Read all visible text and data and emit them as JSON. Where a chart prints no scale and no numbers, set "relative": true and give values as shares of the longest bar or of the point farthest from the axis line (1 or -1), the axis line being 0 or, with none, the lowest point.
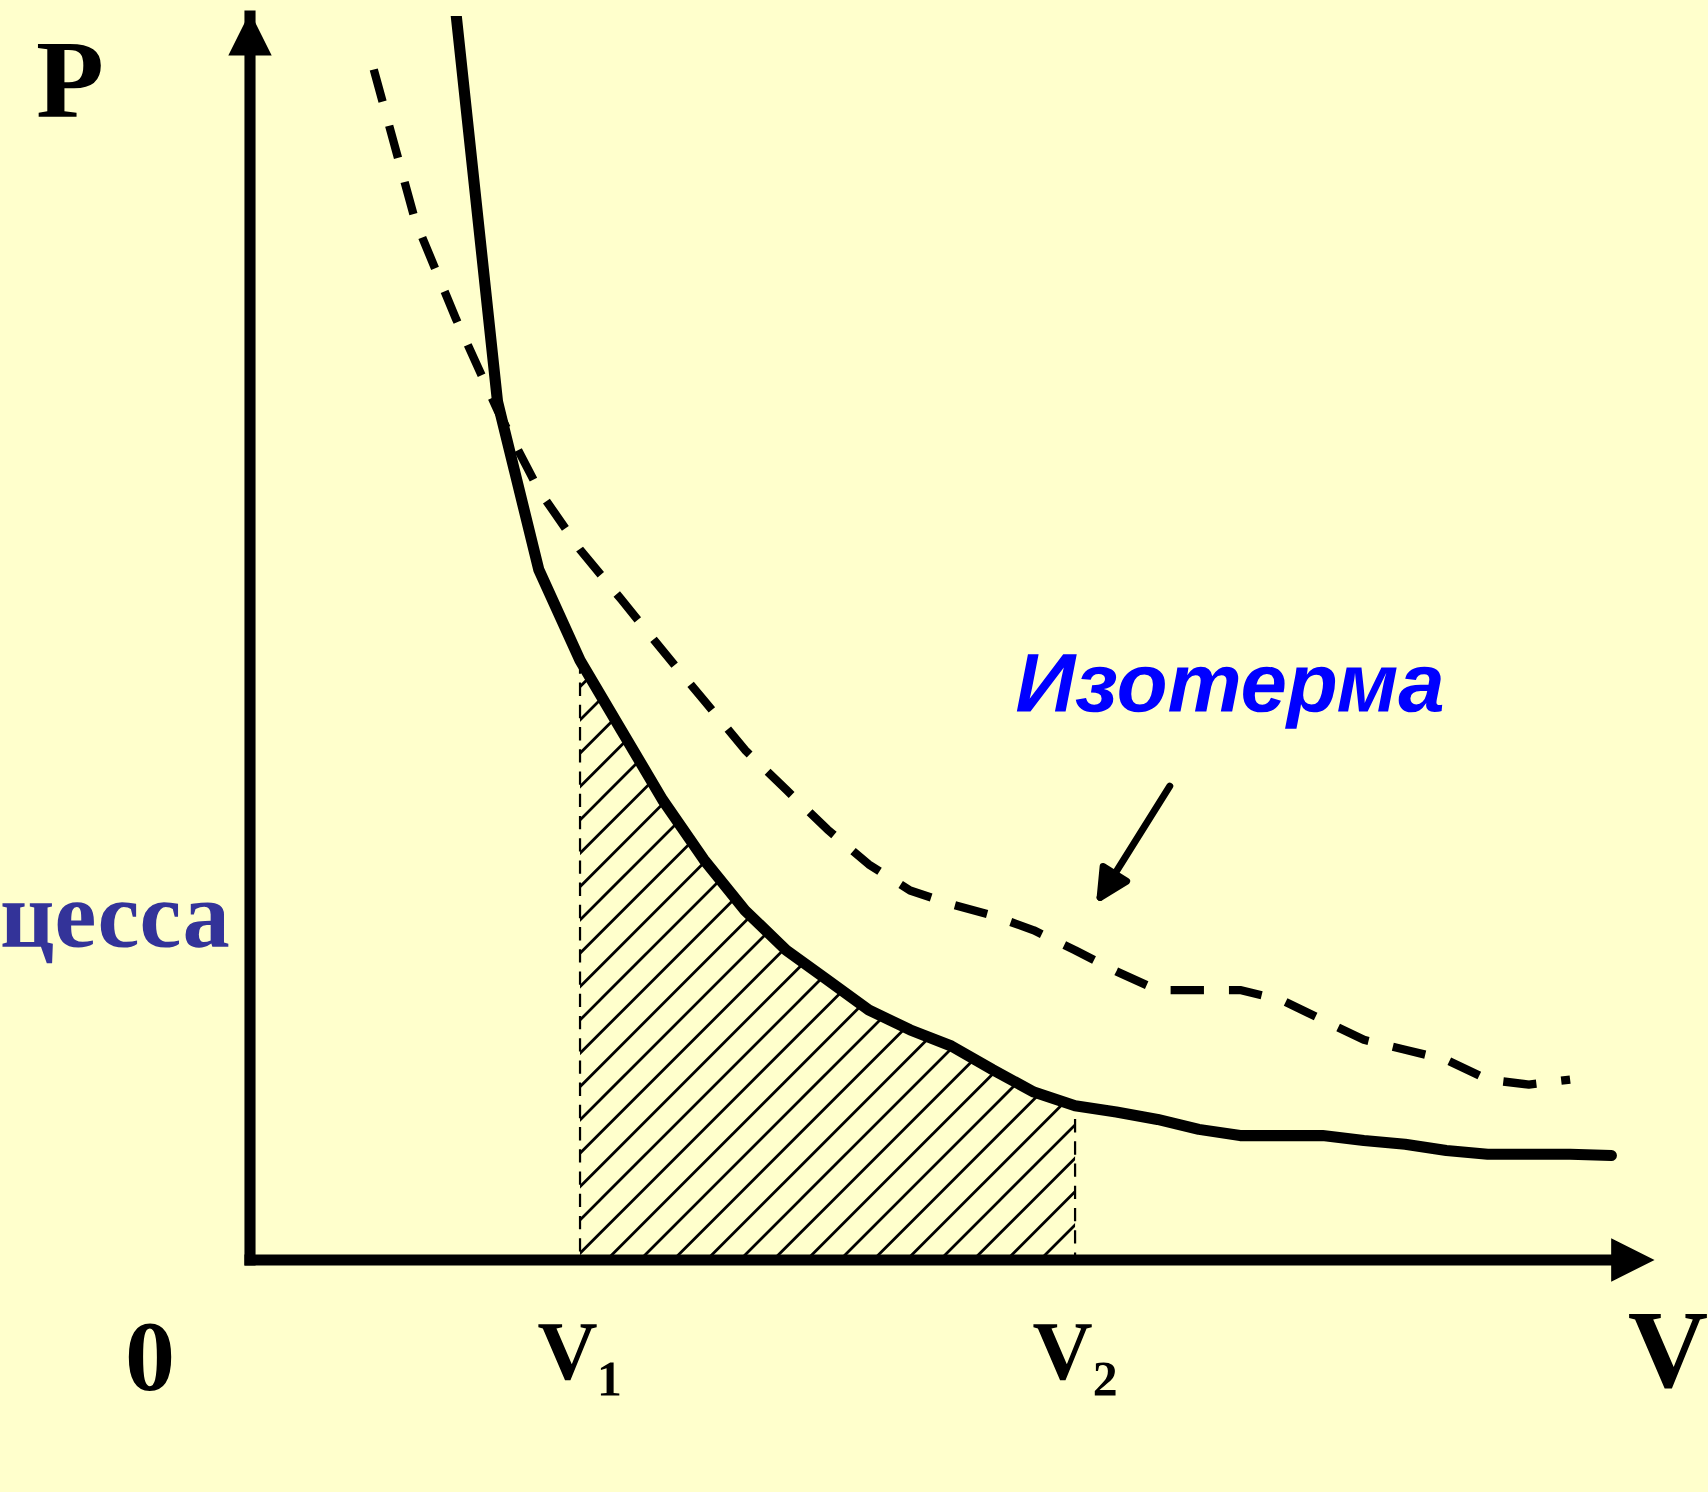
{
  "chart_data": {
    "type": "line",
    "relative": true,
    "xlabel": "V",
    "ylabel": "P",
    "tick_labels": "x",
    "grid": false,
    "legend": false,
    "categories": [
      null,
      null,
      null,
      null,
      null,
      null,
      null,
      null,
      "V₁",
      null,
      null,
      null,
      null,
      null,
      null,
      null,
      null,
      null,
      null,
      null,
      "V₂",
      null,
      null,
      null,
      null,
      null,
      null,
      null,
      null,
      null,
      null,
      null,
      null,
      null
    ],
    "series": [
      {
        "color": "#000000",
        "line_style": "solid",
        "values": [
          null,
          null,
          null,
          null,
          null,
          1.0,
          0.69,
          0.555,
          0.482,
          0.426,
          0.37,
          0.322,
          0.281,
          0.249,
          0.225,
          0.201,
          0.185,
          0.172,
          0.153,
          0.135,
          0.124,
          0.119,
          0.113,
          0.105,
          0.1,
          0.1,
          0.1,
          0.096,
          0.093,
          0.088,
          0.085,
          0.085,
          0.085,
          0.084
        ]
      },
      {
        "color": "#000000",
        "line_style": "dashed",
        "values": [
          null,
          null,
          null,
          0.957,
          0.836,
          0.756,
          0.683,
          0.619,
          0.571,
          0.531,
          0.49,
          0.45,
          0.41,
          0.378,
          0.346,
          0.318,
          0.297,
          0.286,
          0.277,
          0.265,
          0.249,
          0.232,
          0.217,
          0.217,
          0.217,
          0.209,
          0.193,
          0.177,
          0.169,
          0.161,
          0.145,
          0.141,
          0.145,
          null
        ]
      },
      {
        "type": "area",
        "color": "#000000",
        "values": [
          null,
          null,
          null,
          null,
          null,
          null,
          null,
          null,
          0.482,
          0.426,
          0.37,
          0.322,
          0.281,
          0.249,
          0.225,
          0.201,
          0.185,
          0.172,
          0.153,
          0.135,
          0.124,
          null,
          null,
          null,
          null,
          null,
          null,
          null,
          null,
          null,
          null,
          null,
          null,
          null
        ]
      }
    ],
    "annotations": [
      "0",
      "Изотерма",
      "цесса"
    ]
  }
}
